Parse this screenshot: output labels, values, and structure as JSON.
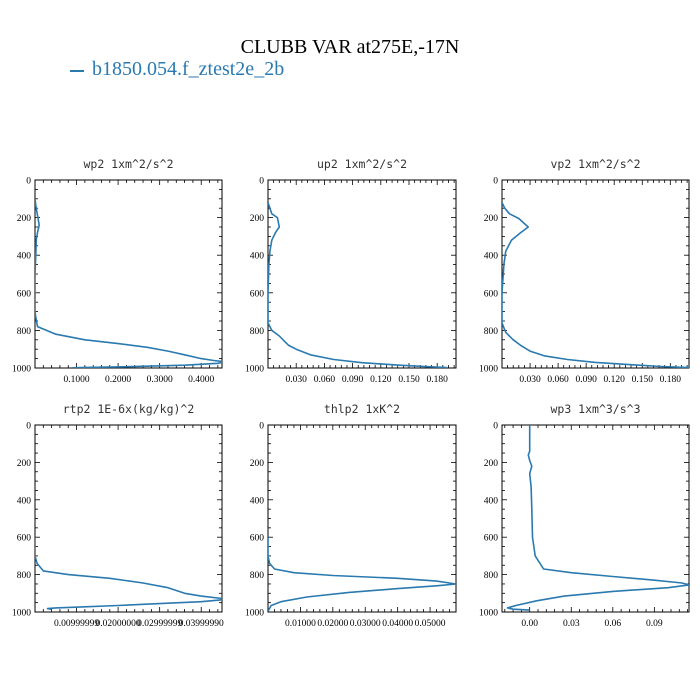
{
  "title": "CLUBB VAR at275E,-17N",
  "legend": {
    "label": "b1850.054.f_ztest2e_2b",
    "color": "#2a7ab0"
  },
  "chart_data": [
    {
      "type": "line",
      "title": "wp2  1xm^2/s^2",
      "xlim": [
        0.0,
        0.45
      ],
      "ylim": [
        1000,
        0
      ],
      "yticks": [
        0,
        200,
        400,
        600,
        800,
        1000
      ],
      "yticklabels": [
        "0",
        "200",
        "400",
        "600",
        "800",
        "1000"
      ],
      "xticks": [
        0.1,
        0.2,
        0.3,
        0.4
      ],
      "xticklabels": [
        "0.1000",
        "0.2000",
        "0.3000",
        "0.4000"
      ],
      "series": [
        {
          "x": [
            0.0,
            0.003,
            0.007,
            0.01,
            0.006,
            0.003,
            0.002,
            0.0,
            0.0,
            0.002,
            0.006,
            0.05,
            0.12,
            0.2,
            0.27,
            0.32,
            0.36,
            0.4,
            0.43,
            0.45,
            0.45,
            0.44,
            0.36,
            0.28,
            0.2,
            0.12,
            0.09
          ],
          "y": [
            100,
            150,
            200,
            240,
            280,
            320,
            400,
            500,
            700,
            730,
            780,
            820,
            850,
            870,
            890,
            910,
            930,
            950,
            960,
            965,
            970,
            975,
            985,
            990,
            994,
            997,
            999
          ]
        }
      ]
    },
    {
      "type": "line",
      "title": "up2  1xm^2/s^2",
      "xlim": [
        0.0,
        0.2
      ],
      "ylim": [
        1000,
        0
      ],
      "yticks": [
        0,
        200,
        400,
        600,
        800,
        1000
      ],
      "yticklabels": [
        "0",
        "200",
        "400",
        "600",
        "800",
        "1000"
      ],
      "xticks": [
        0.03,
        0.06,
        0.09,
        0.12,
        0.15,
        0.18
      ],
      "xticklabels": [
        "0.030",
        "0.060",
        "0.090",
        "0.120",
        "0.150",
        "0.180"
      ],
      "series": [
        {
          "x": [
            0.0,
            0.002,
            0.004,
            0.01,
            0.012,
            0.008,
            0.004,
            0.002,
            0.001,
            0.0,
            0.0,
            0.004,
            0.012,
            0.018,
            0.022,
            0.03,
            0.045,
            0.07,
            0.1,
            0.14,
            0.17,
            0.19
          ],
          "y": [
            120,
            150,
            180,
            200,
            250,
            280,
            320,
            380,
            450,
            600,
            760,
            800,
            830,
            860,
            880,
            900,
            930,
            955,
            972,
            985,
            993,
            998
          ]
        }
      ]
    },
    {
      "type": "line",
      "title": "vp2  1xm^2/s^2",
      "xlim": [
        0.0,
        0.2
      ],
      "ylim": [
        1000,
        0
      ],
      "yticks": [
        0,
        200,
        400,
        600,
        800,
        1000
      ],
      "yticklabels": [
        "0",
        "200",
        "400",
        "600",
        "800",
        "1000"
      ],
      "xticks": [
        0.03,
        0.06,
        0.09,
        0.12,
        0.15,
        0.18
      ],
      "xticklabels": [
        "0.030",
        "0.060",
        "0.090",
        "0.120",
        "0.150",
        "0.180"
      ],
      "series": [
        {
          "x": [
            0.0,
            0.003,
            0.008,
            0.018,
            0.028,
            0.02,
            0.01,
            0.004,
            0.002,
            0.0,
            0.0,
            0.004,
            0.012,
            0.02,
            0.03,
            0.045,
            0.07,
            0.1,
            0.14,
            0.17,
            0.2
          ],
          "y": [
            120,
            150,
            180,
            205,
            250,
            280,
            320,
            380,
            450,
            600,
            760,
            810,
            850,
            880,
            910,
            935,
            955,
            970,
            983,
            992,
            998
          ]
        }
      ]
    },
    {
      "type": "line",
      "title": "rtp2  1E-6x(kg/kg)^2",
      "xlim": [
        0.0,
        0.045
      ],
      "ylim": [
        1000,
        0
      ],
      "yticks": [
        0,
        200,
        400,
        600,
        800,
        1000
      ],
      "yticklabels": [
        "0",
        "200",
        "400",
        "600",
        "800",
        "1000"
      ],
      "xticks": [
        0.01,
        0.02,
        0.03,
        0.04
      ],
      "xticklabels": [
        "0.00999999",
        "0.02000000",
        "0.02999999",
        "0.03999990"
      ],
      "series": [
        {
          "x": [
            0.0,
            0.0,
            0.0005,
            0.002,
            0.008,
            0.018,
            0.026,
            0.032,
            0.034,
            0.036,
            0.04,
            0.045,
            0.045,
            0.04,
            0.03,
            0.02,
            0.012,
            0.005,
            0.003,
            0.004
          ],
          "y": [
            600,
            700,
            740,
            780,
            800,
            820,
            845,
            870,
            885,
            900,
            915,
            928,
            935,
            945,
            955,
            965,
            972,
            978,
            982,
            986
          ]
        }
      ]
    },
    {
      "type": "line",
      "title": "thlp2  1xK^2",
      "xlim": [
        0.0,
        0.058
      ],
      "ylim": [
        1000,
        0
      ],
      "yticks": [
        0,
        200,
        400,
        600,
        800,
        1000
      ],
      "yticklabels": [
        "0",
        "200",
        "400",
        "600",
        "800",
        "1000"
      ],
      "xticks": [
        0.01,
        0.02,
        0.03,
        0.04,
        0.05
      ],
      "xticklabels": [
        "0.01000",
        "0.02000",
        "0.03000",
        "0.04000",
        "0.05000"
      ],
      "series": [
        {
          "x": [
            0.0,
            0.0,
            0.0005,
            0.002,
            0.008,
            0.02,
            0.04,
            0.052,
            0.058,
            0.052,
            0.04,
            0.025,
            0.012,
            0.004,
            0.001,
            0.0005,
            0.0
          ],
          "y": [
            600,
            700,
            740,
            770,
            790,
            805,
            820,
            835,
            850,
            860,
            875,
            895,
            920,
            945,
            965,
            980,
            995
          ]
        }
      ]
    },
    {
      "type": "line",
      "title": "wp3  1xm^3/s^3",
      "xlim": [
        -0.02,
        0.115
      ],
      "ylim": [
        1000,
        0
      ],
      "yticks": [
        0,
        200,
        400,
        600,
        800,
        1000
      ],
      "yticklabels": [
        "0",
        "200",
        "400",
        "600",
        "800",
        "1000"
      ],
      "xticks": [
        0.0,
        0.03,
        0.06,
        0.09
      ],
      "xticklabels": [
        "0.00",
        "0.03",
        "0.06",
        "0.09"
      ],
      "series": [
        {
          "x": [
            0.0,
            0.0,
            -0.001,
            0.0,
            0.0015,
            0.0,
            0.001,
            0.0015,
            0.002,
            0.004,
            0.01,
            0.03,
            0.06,
            0.09,
            0.11,
            0.115,
            0.1,
            0.06,
            0.025,
            0.005,
            -0.01,
            -0.016,
            -0.012,
            0.0
          ],
          "y": [
            0,
            140,
            160,
            190,
            220,
            260,
            330,
            450,
            600,
            700,
            770,
            790,
            810,
            830,
            845,
            855,
            870,
            890,
            915,
            940,
            965,
            978,
            985,
            990
          ]
        }
      ]
    }
  ]
}
